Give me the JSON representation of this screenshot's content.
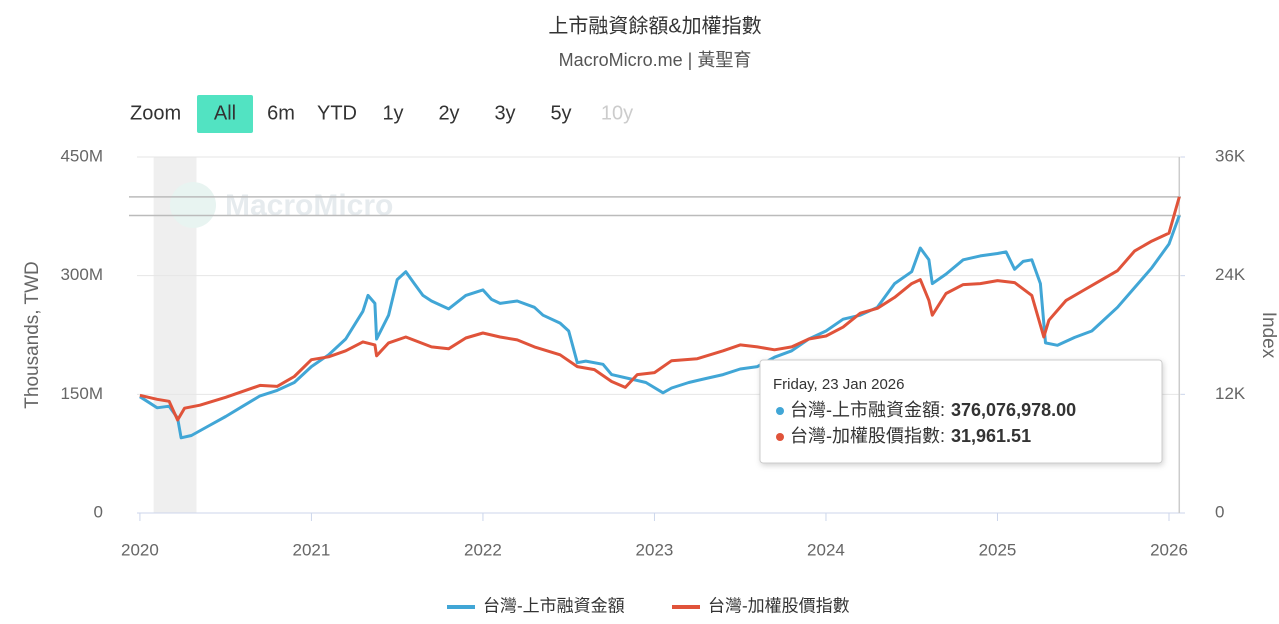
{
  "chart_data": {
    "type": "line",
    "title": "上市融資餘額&加權指數",
    "subtitle": "MacroMicro.me | 黃聖育",
    "watermark": "MacroMicro",
    "range_selector": {
      "label": "Zoom",
      "buttons": [
        "All",
        "6m",
        "YTD",
        "1y",
        "2y",
        "3y",
        "5y",
        "10y"
      ],
      "selected": 0,
      "disabled": [
        7
      ]
    },
    "y_label": "Thousands, TWD",
    "y2_label": "Index",
    "xlim": [
      2019.983,
      2026.07
    ],
    "xticks": [
      2020,
      2021,
      2022,
      2023,
      2024,
      2025,
      2026
    ],
    "ylim": [
      0,
      450000000
    ],
    "yticks": [
      0,
      {
        "value": 150000000,
        "label": "150M"
      },
      {
        "value": 300000000,
        "label": "300M"
      },
      {
        "value": 450000000,
        "label": "450M"
      }
    ],
    "y2lim": [
      0,
      36000
    ],
    "y2ticks": [
      0,
      {
        "value": 12000,
        "label": "12K"
      },
      {
        "value": 24000,
        "label": "24K"
      },
      {
        "value": 36000,
        "label": "36K"
      }
    ],
    "grid": true,
    "shaded_ranges": [
      [
        2020.08,
        2020.33
      ]
    ],
    "legend": "bottom",
    "series": [
      {
        "name": "台灣-上市融資金額",
        "color": "#41a6d6",
        "axis": "y",
        "x": [
          2020.0,
          2020.05,
          2020.1,
          2020.17,
          2020.22,
          2020.24,
          2020.3,
          2020.4,
          2020.5,
          2020.6,
          2020.7,
          2020.8,
          2020.9,
          2021.0,
          2021.1,
          2021.2,
          2021.3,
          2021.33,
          2021.37,
          2021.38,
          2021.45,
          2021.5,
          2021.55,
          2021.6,
          2021.65,
          2021.7,
          2021.8,
          2021.9,
          2022.0,
          2022.05,
          2022.1,
          2022.2,
          2022.3,
          2022.35,
          2022.45,
          2022.5,
          2022.55,
          2022.6,
          2022.7,
          2022.75,
          2022.85,
          2022.95,
          2023.05,
          2023.1,
          2023.2,
          2023.3,
          2023.4,
          2023.5,
          2023.6,
          2023.7,
          2023.8,
          2023.9,
          2024.0,
          2024.1,
          2024.2,
          2024.3,
          2024.4,
          2024.5,
          2024.55,
          2024.6,
          2024.62,
          2024.7,
          2024.8,
          2024.9,
          2025.0,
          2025.05,
          2025.1,
          2025.15,
          2025.2,
          2025.25,
          2025.28,
          2025.35,
          2025.45,
          2025.55,
          2025.6,
          2025.7,
          2025.8,
          2025.9,
          2026.0,
          2026.06
        ],
        "values": [
          147000000,
          140000000,
          133000000,
          135000000,
          120000000,
          95000000,
          98000000,
          110000000,
          122000000,
          135000000,
          148000000,
          155000000,
          165000000,
          185000000,
          200000000,
          220000000,
          255000000,
          275000000,
          265000000,
          220000000,
          250000000,
          295000000,
          305000000,
          290000000,
          275000000,
          268000000,
          258000000,
          275000000,
          282000000,
          270000000,
          265000000,
          268000000,
          260000000,
          250000000,
          240000000,
          230000000,
          190000000,
          192000000,
          188000000,
          175000000,
          170000000,
          165000000,
          152000000,
          158000000,
          165000000,
          170000000,
          175000000,
          182000000,
          185000000,
          197000000,
          205000000,
          220000000,
          230000000,
          245000000,
          250000000,
          260000000,
          290000000,
          305000000,
          335000000,
          320000000,
          290000000,
          302000000,
          320000000,
          325000000,
          328000000,
          330000000,
          308000000,
          318000000,
          320000000,
          290000000,
          215000000,
          212000000,
          222000000,
          230000000,
          240000000,
          260000000,
          285000000,
          310000000,
          340000000,
          376076978
        ]
      },
      {
        "name": "台灣-加權股價指數",
        "color": "#e0533a",
        "axis": "y2",
        "x": [
          2020.0,
          2020.1,
          2020.17,
          2020.22,
          2020.26,
          2020.35,
          2020.5,
          2020.7,
          2020.8,
          2020.9,
          2021.0,
          2021.1,
          2021.2,
          2021.3,
          2021.37,
          2021.38,
          2021.45,
          2021.55,
          2021.7,
          2021.8,
          2021.9,
          2022.0,
          2022.1,
          2022.2,
          2022.3,
          2022.45,
          2022.55,
          2022.65,
          2022.75,
          2022.83,
          2022.9,
          2023.0,
          2023.1,
          2023.25,
          2023.4,
          2023.5,
          2023.6,
          2023.7,
          2023.8,
          2023.9,
          2024.0,
          2024.1,
          2024.2,
          2024.3,
          2024.4,
          2024.5,
          2024.55,
          2024.6,
          2024.62,
          2024.7,
          2024.8,
          2024.9,
          2025.0,
          2025.1,
          2025.2,
          2025.27,
          2025.3,
          2025.4,
          2025.5,
          2025.6,
          2025.7,
          2025.8,
          2025.9,
          2026.0,
          2026.06
        ],
        "values": [
          11900,
          11500,
          11300,
          9400,
          10600,
          10900,
          11700,
          12900,
          12800,
          13800,
          15500,
          15800,
          16400,
          17300,
          17000,
          15900,
          17200,
          17800,
          16800,
          16600,
          17700,
          18200,
          17800,
          17500,
          16800,
          16000,
          14800,
          14500,
          13300,
          12700,
          14000,
          14200,
          15400,
          15600,
          16400,
          17000,
          16800,
          16500,
          16800,
          17600,
          17900,
          18800,
          20200,
          20700,
          21800,
          23200,
          23600,
          21500,
          20000,
          22200,
          23100,
          23200,
          23500,
          23300,
          22000,
          17800,
          19500,
          21500,
          22500,
          23500,
          24500,
          26500,
          27500,
          28300,
          31961.51
        ]
      }
    ],
    "tooltip": {
      "title": "Friday, 23 Jan 2026",
      "x": 2026.06,
      "items": [
        {
          "label": "台灣-上市融資金額:",
          "axis": "y",
          "value": 376076978,
          "value_label": "376,076,978.00"
        },
        {
          "label": "台灣-加權股價指數:",
          "axis": "y2",
          "value": 31961.51,
          "value_label": "31,961.51"
        }
      ]
    }
  }
}
